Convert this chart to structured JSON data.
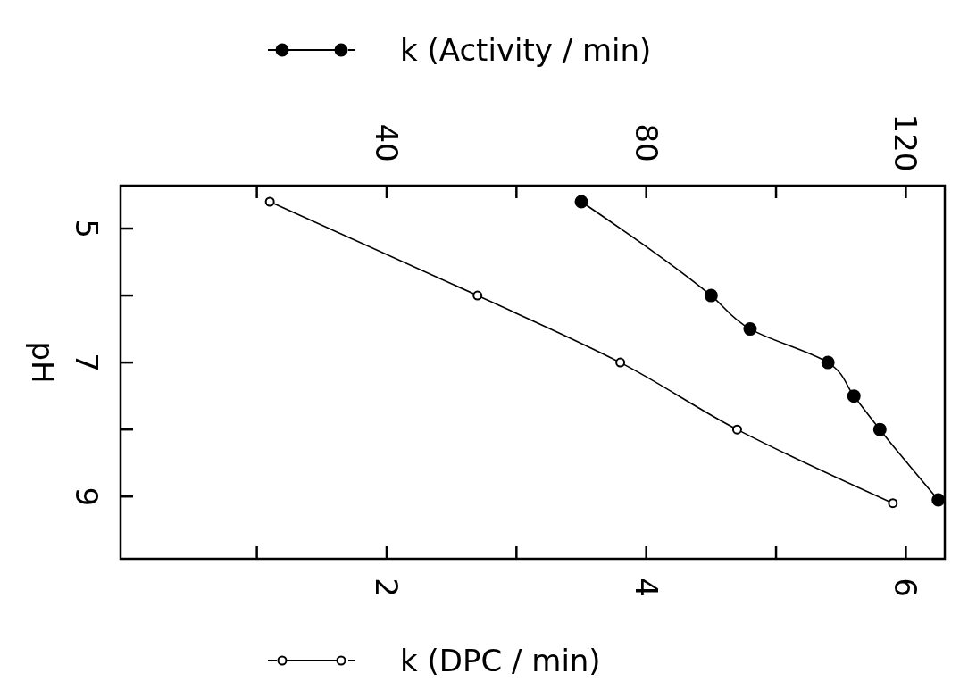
{
  "chart_data": {
    "type": "line",
    "ylabel": "pH",
    "legend": "top",
    "marker": "circle",
    "xlim": [
      -0.05,
      6.3
    ],
    "xticks": [
      {
        "value": 1,
        "label": null
      },
      2,
      {
        "value": 3,
        "label": null
      },
      4,
      {
        "value": 5,
        "label": null
      },
      6
    ],
    "x2lim": [
      -1,
      126
    ],
    "x2ticks": [
      {
        "value": 20,
        "label": null
      },
      40,
      {
        "value": 60,
        "label": null
      },
      80,
      {
        "value": 100,
        "label": null
      },
      120
    ],
    "ylim": [
      9.93,
      4.36
    ],
    "yticks": [
      5,
      {
        "value": 6,
        "label": null
      },
      7,
      {
        "value": 8,
        "label": null
      },
      9
    ],
    "series": [
      {
        "name": "k (Activity / min)",
        "color": "#000000",
        "axis": "x2",
        "x": [
          70,
          90,
          96,
          108,
          112,
          116,
          125
        ],
        "values": [
          4.6,
          6.0,
          6.5,
          7.0,
          7.5,
          8.0,
          9.05
        ]
      },
      {
        "name": "k (DPC / min)",
        "color": "#000000",
        "x": [
          1.1,
          2.7,
          3.8,
          4.7,
          5.9
        ],
        "values": [
          4.6,
          6.0,
          7.0,
          8.0,
          9.1
        ]
      }
    ]
  }
}
